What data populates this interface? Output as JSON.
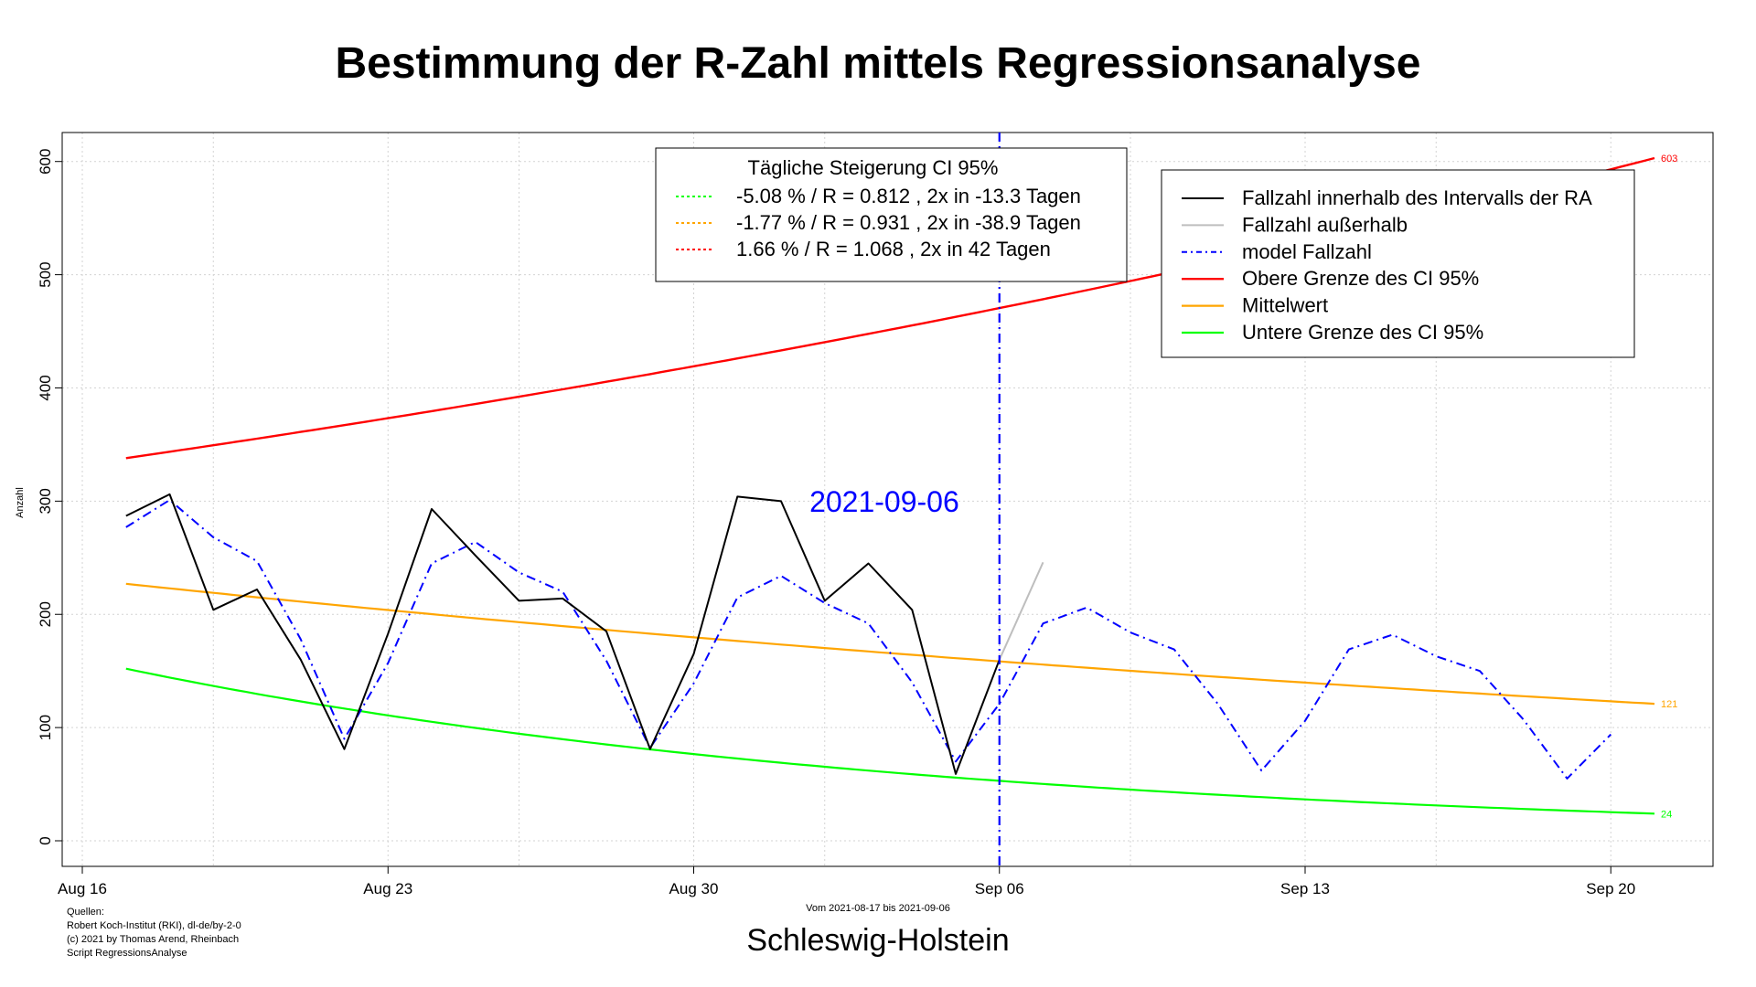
{
  "title": "Bestimmung der R-Zahl mittels Regressionsanalyse",
  "region": "Schleswig-Holstein",
  "period": "Vom 2021-08-17 bis 2021-09-06",
  "sources": [
    "Quellen:",
    "Robert Koch-Institut (RKI), dl-de/by-2-0",
    "(c) 2021 by Thomas Arend, Rheinbach",
    "Script RegressionsAnalyse"
  ],
  "colors": {
    "fallzahl": "#000000",
    "ausserhalb": "#bebebe",
    "model": "#0000ff",
    "obere": "#ff0000",
    "mittel": "#ffa500",
    "untere": "#00ff00",
    "vline": "#0000ff",
    "grid": "#d3d3d3"
  },
  "chart_data": {
    "type": "line",
    "xlabel": "",
    "ylabel": "Anzahl",
    "xlim": [
      "2021-08-16",
      "2021-09-22"
    ],
    "ylim": [
      0,
      600
    ],
    "grid": true,
    "x_ticks": [
      {
        "date": "2021-08-16",
        "label": "Aug 16"
      },
      {
        "date": "2021-08-23",
        "label": "Aug 23"
      },
      {
        "date": "2021-08-30",
        "label": "Aug 30"
      },
      {
        "date": "2021-09-06",
        "label": "Sep 06"
      },
      {
        "date": "2021-09-13",
        "label": "Sep 13"
      },
      {
        "date": "2021-09-20",
        "label": "Sep 20"
      }
    ],
    "y_ticks": [
      0,
      100,
      200,
      300,
      400,
      500,
      600
    ],
    "vertical_line": {
      "date": "2021-09-06",
      "label": "2021-09-06"
    },
    "end_labels": {
      "obere": "603",
      "mittel": "121",
      "untere": "24"
    },
    "series": [
      {
        "name": "Fallzahl innerhalb des Intervalls der RA",
        "key": "fallzahl",
        "dates": [
          "2021-08-17",
          "2021-08-18",
          "2021-08-19",
          "2021-08-20",
          "2021-08-21",
          "2021-08-22",
          "2021-08-23",
          "2021-08-24",
          "2021-08-25",
          "2021-08-26",
          "2021-08-27",
          "2021-08-28",
          "2021-08-29",
          "2021-08-30",
          "2021-08-31",
          "2021-09-01",
          "2021-09-02",
          "2021-09-03",
          "2021-09-04",
          "2021-09-05",
          "2021-09-06"
        ],
        "values": [
          287,
          306,
          204,
          222,
          160,
          81,
          183,
          293,
          252,
          212,
          214,
          185,
          81,
          165,
          304,
          300,
          212,
          245,
          204,
          59,
          160
        ]
      },
      {
        "name": "Fallzahl außerhalb",
        "key": "ausserhalb",
        "dates": [
          "2021-09-06",
          "2021-09-07"
        ],
        "values": [
          160,
          246
        ]
      },
      {
        "name": "model Fallzahl",
        "key": "model",
        "dates": [
          "2021-08-17",
          "2021-08-18",
          "2021-08-19",
          "2021-08-20",
          "2021-08-21",
          "2021-08-22",
          "2021-08-23",
          "2021-08-24",
          "2021-08-25",
          "2021-08-26",
          "2021-08-27",
          "2021-08-28",
          "2021-08-29",
          "2021-08-30",
          "2021-08-31",
          "2021-09-01",
          "2021-09-02",
          "2021-09-03",
          "2021-09-04",
          "2021-09-05",
          "2021-09-06",
          "2021-09-07",
          "2021-09-08",
          "2021-09-09",
          "2021-09-10",
          "2021-09-11",
          "2021-09-12",
          "2021-09-13",
          "2021-09-14",
          "2021-09-15",
          "2021-09-16",
          "2021-09-17",
          "2021-09-18",
          "2021-09-19",
          "2021-09-20"
        ],
        "values": [
          277,
          301,
          268,
          247,
          178,
          90,
          157,
          245,
          264,
          237,
          220,
          159,
          82,
          139,
          215,
          234,
          210,
          192,
          140,
          70,
          121,
          192,
          206,
          184,
          169,
          121,
          62,
          106,
          169,
          182,
          163,
          150,
          107,
          55,
          94
        ]
      },
      {
        "name": "Obere Grenze des CI 95%",
        "key": "obere",
        "dates": [
          "2021-08-17",
          "2021-09-21"
        ],
        "values": [
          338,
          603
        ],
        "growth_percent": 1.66
      },
      {
        "name": "Mittelwert",
        "key": "mittel",
        "dates": [
          "2021-08-17",
          "2021-09-21"
        ],
        "values": [
          227,
          121
        ],
        "growth_percent": -1.77
      },
      {
        "name": "Untere Grenze des CI 95%",
        "key": "untere",
        "dates": [
          "2021-08-17",
          "2021-09-21"
        ],
        "values": [
          152,
          24
        ],
        "growth_percent": -5.08
      }
    ],
    "ci_legend": {
      "title": "Tägliche Steigerung CI  95%",
      "entries": [
        {
          "key": "untere",
          "text": "-5.08 % / R = 0.812 , 2x in -13.3 Tagen"
        },
        {
          "key": "mittel",
          "text": "-1.77 % / R = 0.931 , 2x in -38.9 Tagen"
        },
        {
          "key": "obere",
          "text": "1.66 % / R = 1.068 , 2x in 42 Tagen"
        }
      ]
    },
    "legend_entries": [
      {
        "key": "fallzahl",
        "text": "Fallzahl innerhalb des Intervalls der RA"
      },
      {
        "key": "ausserhalb",
        "text": "Fallzahl außerhalb"
      },
      {
        "key": "model",
        "text": "model Fallzahl"
      },
      {
        "key": "obere",
        "text": "Obere Grenze des CI 95%"
      },
      {
        "key": "mittel",
        "text": "Mittelwert"
      },
      {
        "key": "untere",
        "text": "Untere Grenze des CI 95%"
      }
    ]
  }
}
